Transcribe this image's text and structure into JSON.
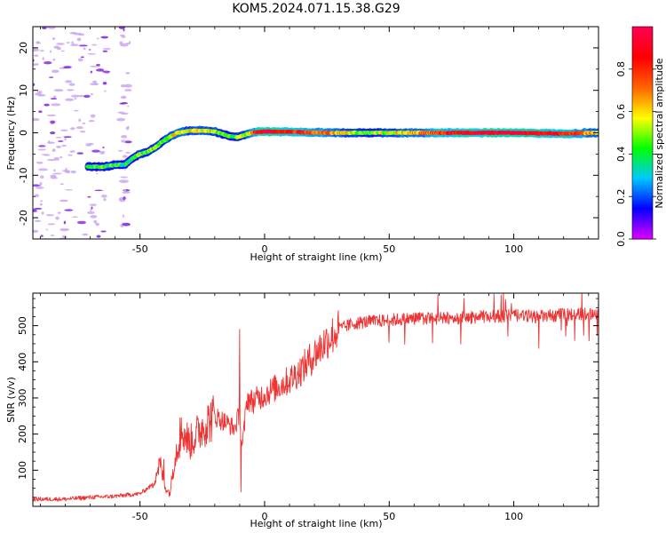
{
  "chart_data": [
    {
      "type": "heatmap",
      "title": "KOM5.2024.071.15.38.G29",
      "xlabel": "Height of straight line (km)",
      "ylabel": "Frequency (Hz)",
      "xlim": [
        -93,
        134
      ],
      "ylim": [
        -25,
        25
      ],
      "xticks": [
        -50,
        0,
        50,
        100
      ],
      "yticks": [
        -20,
        -10,
        0,
        10,
        20
      ],
      "colorbar": {
        "label": "Normalized spectral amplitude",
        "range": [
          0,
          1
        ],
        "ticks": [
          "0.0",
          "0.2",
          "0.4",
          "0.6",
          "0.8"
        ],
        "colormap": "gist_rainbow_r",
        "colors": [
          "#dd00ff",
          "#0000ff",
          "#00c8ff",
          "#00ff00",
          "#ffff00",
          "#ff6600",
          "#ff0000",
          "#ff0050"
        ]
      },
      "trace": {
        "x": [
          -71,
          -65,
          -59,
          -56,
          -53,
          -50,
          -47,
          -44,
          -41,
          -38,
          -35,
          -30,
          -25,
          -20,
          -17,
          -14,
          -11,
          -8,
          -5,
          -2,
          0,
          10,
          25,
          40,
          60,
          80,
          100,
          120,
          134
        ],
        "freq": [
          -8,
          -8,
          -7.5,
          -7.5,
          -6,
          -5,
          -4.5,
          -3.5,
          -2,
          -1,
          0,
          0.5,
          0.5,
          0.3,
          -0.3,
          -0.8,
          -1,
          -0.5,
          0,
          0.2,
          0.3,
          0.2,
          0,
          0,
          0,
          0,
          0,
          -0.2,
          0
        ],
        "amplitude": [
          0.38,
          0.45,
          0.42,
          0.35,
          0.4,
          0.5,
          0.45,
          0.5,
          0.45,
          0.55,
          0.6,
          0.55,
          0.6,
          0.55,
          0.45,
          0.4,
          0.45,
          0.5,
          0.7,
          0.9,
          1.0,
          0.85,
          0.7,
          0.45,
          0.65,
          0.9,
          0.95,
          0.85,
          0.6
        ]
      },
      "noise_region": {
        "x": [
          -93,
          -55
        ],
        "amplitude": 0.05
      }
    },
    {
      "type": "line",
      "xlabel": "Height of straight line (km)",
      "ylabel": "SNR (v/v)",
      "xlim": [
        -93,
        134
      ],
      "ylim": [
        0,
        590
      ],
      "xticks": [
        -50,
        0,
        50,
        100
      ],
      "yticks": [
        100,
        200,
        300,
        400,
        500
      ],
      "color": "#ee3333",
      "envelope": {
        "x": [
          -93,
          -80,
          -70,
          -60,
          -50,
          -45,
          -42,
          -40,
          -38,
          -36,
          -33,
          -30,
          -25,
          -20,
          -15,
          -12,
          -10,
          -9,
          -7,
          -5,
          0,
          5,
          10,
          15,
          20,
          25,
          30,
          35,
          40,
          50,
          60,
          70,
          80,
          90,
          100,
          110,
          120,
          134
        ],
        "snr": [
          20,
          20,
          25,
          28,
          35,
          60,
          120,
          55,
          35,
          140,
          210,
          175,
          220,
          250,
          230,
          215,
          260,
          160,
          300,
          290,
          310,
          330,
          350,
          380,
          420,
          460,
          490,
          505,
          510,
          515,
          520,
          520,
          522,
          525,
          528,
          525,
          530,
          535
        ]
      },
      "spikes": [
        {
          "x": -40.5,
          "snr": 130
        },
        {
          "x": -34,
          "snr": 245
        },
        {
          "x": -10,
          "snr": 490
        },
        {
          "x": -9.5,
          "snr": 40
        },
        {
          "x": 95,
          "snr": 585
        },
        {
          "x": 80,
          "snr": 575
        }
      ]
    }
  ]
}
